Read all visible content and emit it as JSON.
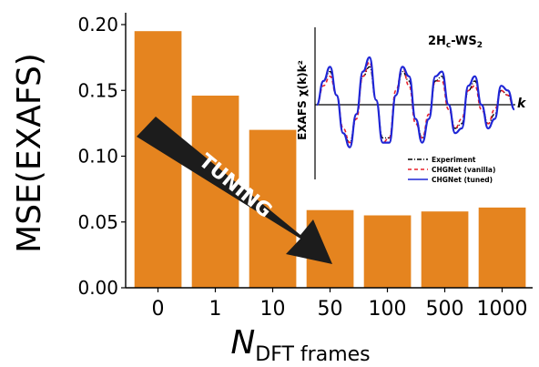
{
  "colors": {
    "bar": "#e5841f",
    "experiment": "#000000",
    "vanilla": "#e8202a",
    "tuned": "#1f26d6",
    "arrow": "#1c1c1c",
    "arrow_text": "#ffffff"
  },
  "chart_data": [
    {
      "type": "bar",
      "categories": [
        "0",
        "1",
        "10",
        "50",
        "100",
        "500",
        "1000"
      ],
      "values": [
        0.195,
        0.146,
        0.12,
        0.059,
        0.055,
        0.058,
        0.061
      ],
      "ylabel": "MSE(EXAFS)",
      "xlabel_main": "N",
      "xlabel_sub": "DFT frames",
      "ylim": [
        0,
        0.205
      ],
      "yticks": [
        "0.00",
        "0.05",
        "0.10",
        "0.15",
        "0.20"
      ],
      "ytick_values": [
        0,
        0.05,
        0.1,
        0.15,
        0.2
      ],
      "grid": false,
      "annotation": "TUNING"
    },
    {
      "type": "line",
      "title_parts": [
        "2H",
        "c",
        "-WS",
        "2"
      ],
      "ylabel": "EXAFS  χ(k)k²",
      "xlabel": "k",
      "legend_position": "bottom-right",
      "series": [
        {
          "name": "Experiment",
          "style": "black-dash-dot",
          "values": [
            0,
            0.5,
            0.7,
            0.2,
            -0.6,
            -0.8,
            -0.2,
            0.6,
            0.8,
            0.1,
            -0.7,
            -0.7,
            0.2,
            0.7,
            0.5,
            -0.3,
            -0.7,
            -0.3,
            0.5,
            0.6,
            0.0,
            -0.5,
            -0.4,
            0.3,
            0.5,
            0.0,
            -0.4,
            -0.2,
            0.3,
            0.2,
            -0.1
          ]
        },
        {
          "name": "CHGNet (vanilla)",
          "style": "red-dashed",
          "values": [
            0,
            0.4,
            0.6,
            0.2,
            -0.5,
            -0.8,
            -0.3,
            0.6,
            0.9,
            0.1,
            -0.8,
            -0.7,
            0.3,
            0.8,
            0.4,
            -0.4,
            -0.7,
            -0.2,
            0.5,
            0.5,
            -0.1,
            -0.5,
            -0.3,
            0.3,
            0.4,
            -0.1,
            -0.4,
            -0.1,
            0.3,
            0.2,
            -0.1
          ]
        },
        {
          "name": "CHGNet (tuned)",
          "style": "blue-solid",
          "values": [
            0,
            0.5,
            0.8,
            0.2,
            -0.6,
            -0.9,
            -0.2,
            0.7,
            1.0,
            0.1,
            -0.8,
            -0.8,
            0.2,
            0.8,
            0.6,
            -0.3,
            -0.8,
            -0.3,
            0.6,
            0.7,
            0.0,
            -0.6,
            -0.5,
            0.4,
            0.6,
            0.0,
            -0.5,
            -0.3,
            0.4,
            0.3,
            -0.1
          ]
        }
      ]
    }
  ]
}
